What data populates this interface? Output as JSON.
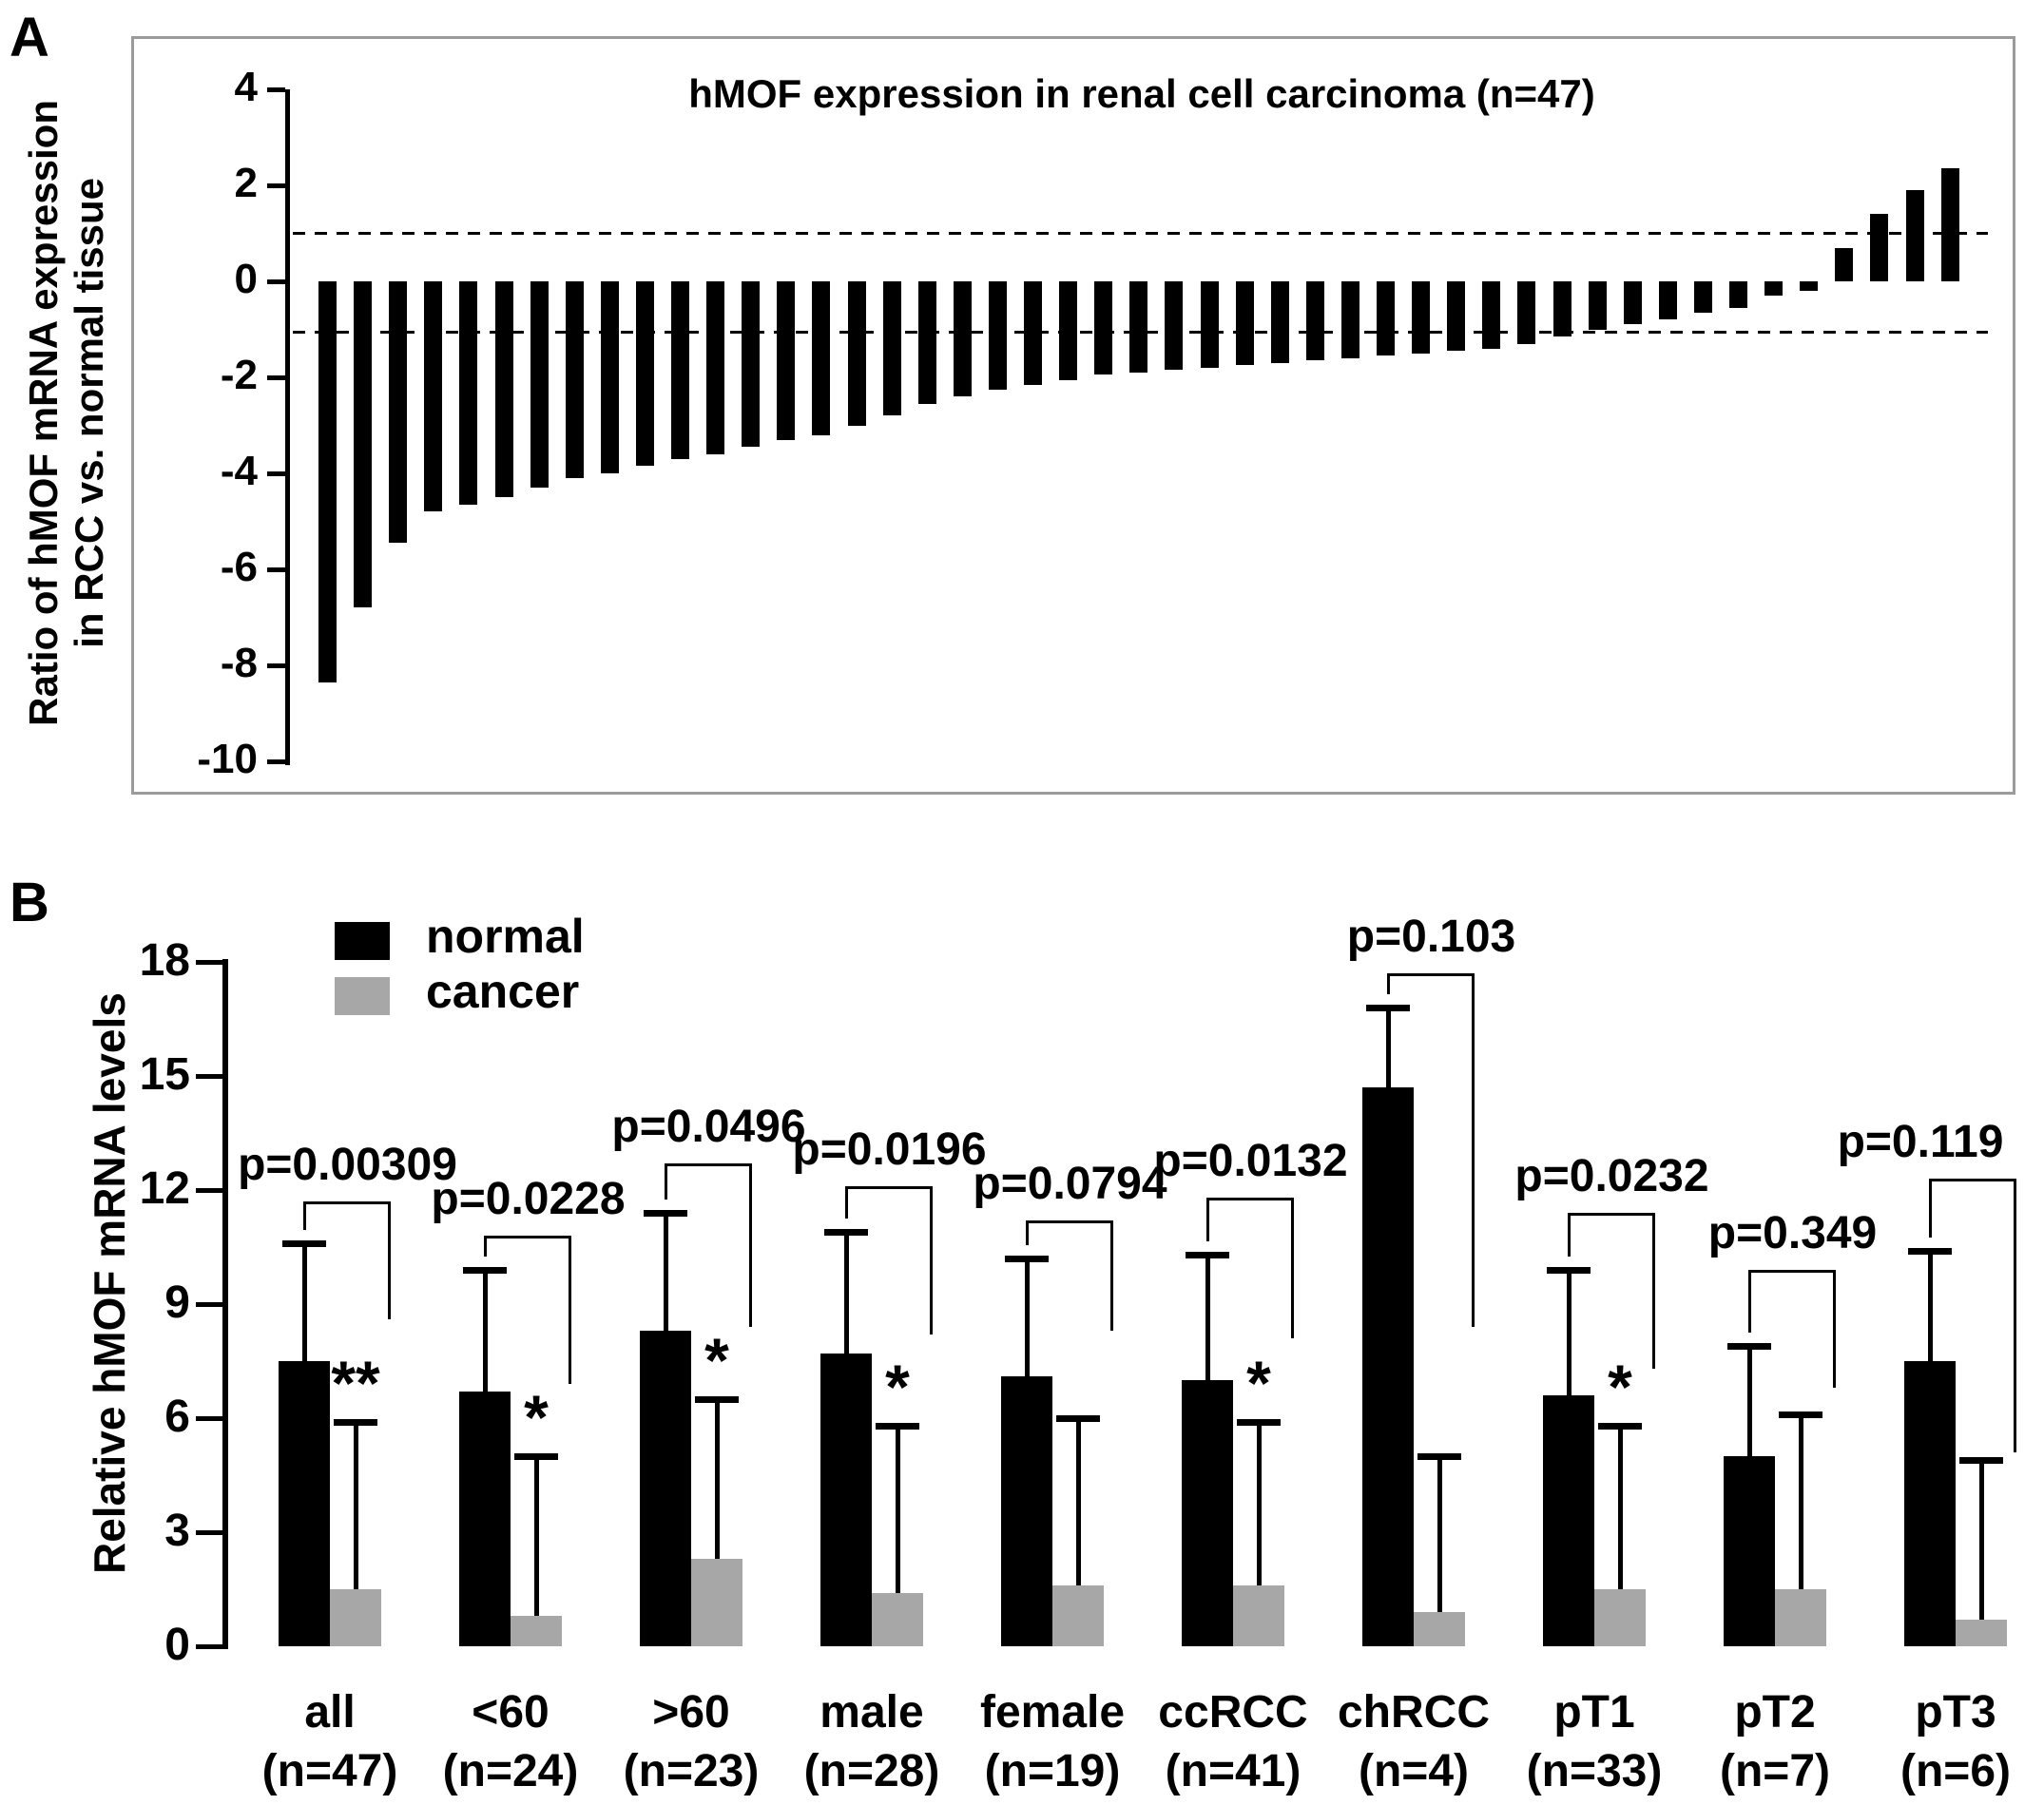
{
  "panel_a": {
    "label": "A"
  },
  "panel_b": {
    "label": "B"
  },
  "chart_data": [
    {
      "type": "bar",
      "subtype": "waterfall",
      "title": "hMOF expression in renal cell carcinoma (n=47)",
      "ylabel_line1": "Ratio of hMOF mRNA expression",
      "ylabel_line2": "in RCC vs. normal tissue",
      "n": 47,
      "ylim": [
        -10,
        4
      ],
      "y_ticks": [
        4,
        2,
        0,
        -2,
        -4,
        -6,
        -8,
        -10
      ],
      "reference_lines": [
        1,
        -1.05
      ],
      "bar_color": "#000000",
      "values": [
        -8.35,
        -6.8,
        -5.45,
        -4.8,
        -4.65,
        -4.5,
        -4.3,
        -4.1,
        -4.0,
        -3.85,
        -3.7,
        -3.6,
        -3.45,
        -3.3,
        -3.2,
        -3.0,
        -2.8,
        -2.55,
        -2.4,
        -2.25,
        -2.15,
        -2.05,
        -1.95,
        -1.9,
        -1.85,
        -1.8,
        -1.75,
        -1.7,
        -1.65,
        -1.6,
        -1.55,
        -1.5,
        -1.45,
        -1.4,
        -1.3,
        -1.15,
        -1.0,
        -0.9,
        -0.8,
        -0.65,
        -0.55,
        -0.3,
        -0.2,
        0.7,
        1.4,
        1.9,
        2.35
      ]
    },
    {
      "type": "bar",
      "subtype": "grouped-with-error-bars",
      "ylabel": "Relative hMOF mRNA levels",
      "ylim": [
        0,
        18
      ],
      "y_ticks": [
        0,
        3,
        6,
        9,
        12,
        15,
        18
      ],
      "legend": [
        {
          "name": "normal",
          "color": "#000000"
        },
        {
          "name": "cancer",
          "color": "#a7a7a7"
        }
      ],
      "categories": [
        "all",
        "<60",
        ">60",
        "male",
        "female",
        "ccRCC",
        "chRCC",
        "pT1",
        "pT2",
        "pT3"
      ],
      "category_n": [
        "(n=47)",
        "(n=24)",
        "(n=23)",
        "(n=28)",
        "(n=19)",
        "(n=41)",
        "(n=4)",
        "(n=33)",
        "(n=7)",
        "(n=6)"
      ],
      "series": [
        {
          "name": "normal",
          "values": [
            7.5,
            6.7,
            8.3,
            7.7,
            7.1,
            7.0,
            14.7,
            6.6,
            5.0,
            7.5
          ],
          "error_top": [
            10.6,
            9.9,
            11.4,
            10.9,
            10.2,
            10.3,
            16.8,
            9.9,
            7.9,
            10.4
          ]
        },
        {
          "name": "cancer",
          "values": [
            1.5,
            0.8,
            2.3,
            1.4,
            1.6,
            1.6,
            0.9,
            1.5,
            1.5,
            0.7
          ],
          "error_top": [
            5.9,
            5.0,
            6.5,
            5.8,
            6.0,
            5.9,
            5.0,
            5.8,
            6.1,
            4.9
          ]
        }
      ],
      "p_values": [
        "p=0.00309",
        "p=0.0228",
        "p=0.0496",
        "p=0.0196",
        "p=0.0794",
        "p=0.0132",
        "p=0.103",
        "p=0.0232",
        "p=0.349",
        "p=0.119"
      ],
      "significance": [
        "**",
        "*",
        "*",
        "*",
        "",
        "*",
        "",
        "*",
        "",
        ""
      ],
      "brackets": {
        "top": [
          11.7,
          10.8,
          12.7,
          12.1,
          11.2,
          11.8,
          17.7,
          11.4,
          9.9,
          12.3
        ],
        "right_end": [
          8.6,
          6.9,
          8.4,
          8.2,
          8.3,
          8.1,
          8.4,
          7.3,
          6.8,
          5.1
        ]
      }
    }
  ]
}
